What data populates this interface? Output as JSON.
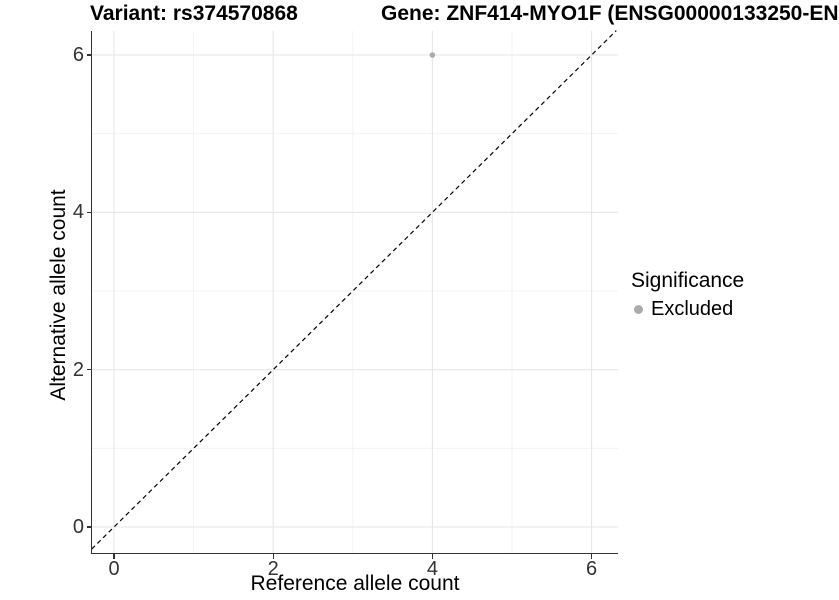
{
  "chart_data": {
    "type": "scatter",
    "title_left": "Variant: rs374570868",
    "title_right": "Gene: ZNF414-MYO1F (ENSG00000133250-EN",
    "xlabel": "Reference allele count",
    "ylabel": "Alternative allele count",
    "xlim": [
      -0.28,
      6.32
    ],
    "ylim": [
      -0.33,
      6.31
    ],
    "x_major_ticks": [
      0,
      2,
      4,
      6
    ],
    "x_minor_ticks": [
      1,
      3,
      5
    ],
    "y_major_ticks": [
      0,
      2,
      4,
      6
    ],
    "y_minor_ticks": [
      1,
      3,
      5
    ],
    "grid": true,
    "reference_line": {
      "type": "identity",
      "slope": 1,
      "intercept": 0,
      "style": "dashed",
      "color": "#000000"
    },
    "series": [
      {
        "name": "Excluded",
        "color": "#ababab",
        "point_radius": 2.8,
        "points": [
          {
            "x": 4,
            "y": 6
          }
        ]
      }
    ],
    "legend": {
      "title": "Significance",
      "position": "right",
      "entries": [
        {
          "label": "Excluded",
          "color": "#ababab"
        }
      ]
    },
    "colors": {
      "grid_major": "#e6e6e6",
      "grid_minor": "#f0f0f0",
      "axis_line": "#333333",
      "tick_text": "#333333",
      "title_text": "#000000"
    }
  }
}
